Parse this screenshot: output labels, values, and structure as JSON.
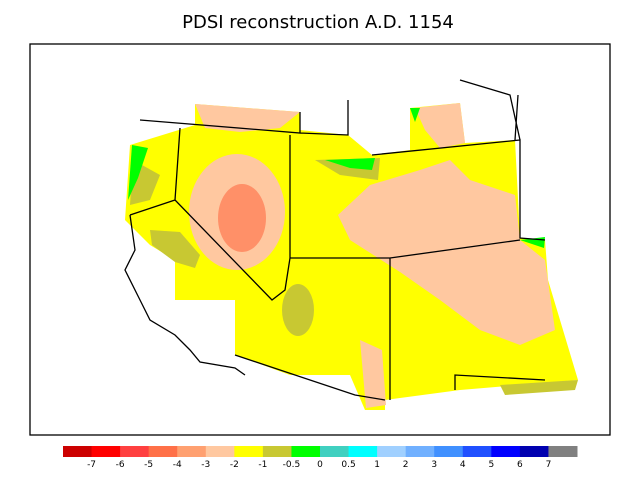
{
  "title": "PDSI reconstruction A.D. 1154",
  "colorbar": {
    "colors": [
      "#cc0000",
      "#ff0000",
      "#ff4040",
      "#ff7048",
      "#ffa070",
      "#ffc8a0",
      "#ffff00",
      "#c8c832",
      "#00ff00",
      "#40d0c0",
      "#00ffff",
      "#a0d0ff",
      "#70b0ff",
      "#4090ff",
      "#2050ff",
      "#0000ff",
      "#0000b0",
      "#808080"
    ],
    "ticks": [
      -7,
      -6,
      -5,
      -4,
      -3,
      -2,
      -1,
      -0.5,
      0,
      0.5,
      1,
      2,
      3,
      4,
      5,
      6,
      7
    ]
  }
}
